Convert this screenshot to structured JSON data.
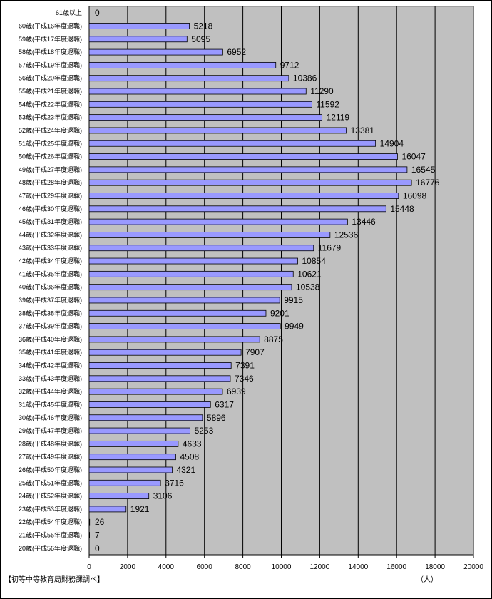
{
  "chart_data": {
    "type": "bar",
    "orientation": "horizontal",
    "categories": [
      "61歳以上",
      "60歳(平成16年度退職)",
      "59歳(平成17年度退職)",
      "58歳(平成18年度退職)",
      "57歳(平成19年度退職)",
      "56歳(平成20年度退職)",
      "55歳(平成21年度退職)",
      "54歳(平成22年度退職)",
      "53歳(平成23年度退職)",
      "52歳(平成24年度退職)",
      "51歳(平成25年度退職)",
      "50歳(平成26年度退職)",
      "49歳(平成27年度退職)",
      "48歳(平成28年度退職)",
      "47歳(平成29年度退職)",
      "46歳(平成30年度退職)",
      "45歳(平成31年度退職)",
      "44歳(平成32年度退職)",
      "43歳(平成33年度退職)",
      "42歳(平成34年度退職)",
      "41歳(平成35年度退職)",
      "40歳(平成36年度退職)",
      "39歳(平成37年度退職)",
      "38歳(平成38年度退職)",
      "37歳(平成39年度退職)",
      "36歳(平成40年度退職)",
      "35歳(平成41年度退職)",
      "34歳(平成42年度退職)",
      "33歳(平成43年度退職)",
      "32歳(平成44年度退職)",
      "31歳(平成45年度退職)",
      "30歳(平成46年度退職)",
      "29歳(平成47年度退職)",
      "28歳(平成48年度退職)",
      "27歳(平成49年度退職)",
      "26歳(平成50年度退職)",
      "25歳(平成51年度退職)",
      "24歳(平成52年度退職)",
      "23歳(平成53年度退職)",
      "22歳(平成54年度退職)",
      "21歳(平成55年度退職)",
      "20歳(平成56年度退職)"
    ],
    "values": [
      0,
      5218,
      5095,
      6952,
      9712,
      10386,
      11290,
      11592,
      12119,
      13381,
      14904,
      16047,
      16545,
      16776,
      16098,
      15448,
      13446,
      12536,
      11679,
      10854,
      10621,
      10538,
      9915,
      9201,
      9949,
      8875,
      7907,
      7391,
      7346,
      6939,
      6317,
      5896,
      5253,
      4633,
      4508,
      4321,
      3716,
      3106,
      1921,
      26,
      7,
      0
    ],
    "data_labels": [
      "0",
      "5218",
      "5095",
      "6952",
      "9712",
      "10386",
      "11290",
      "11592",
      "12119",
      "13381",
      "14904",
      "16047",
      "16545",
      "16776",
      "16098",
      "15448",
      "13446",
      "12536",
      "11679",
      "10854",
      "10621",
      "10538",
      "9915",
      "9201",
      "9949",
      "8875",
      "7907",
      "7391",
      "7346",
      "6939",
      "6317",
      "5896",
      "5253",
      "4633",
      "4508",
      "4321",
      "3716",
      "3106",
      "1921",
      "26",
      "7",
      "0"
    ],
    "xlim": [
      0,
      20000
    ],
    "xticks": [
      0,
      2000,
      4000,
      6000,
      8000,
      10000,
      12000,
      14000,
      16000,
      18000,
      20000
    ],
    "xlabel": "（人）",
    "grid": true,
    "colors": {
      "plot_bg": "#c0c0c0",
      "bar_fill": "#9999ff",
      "bar_stroke": "#000000",
      "grid": "#000000"
    }
  },
  "source_note": "【初等中等教育局財務課調べ】"
}
